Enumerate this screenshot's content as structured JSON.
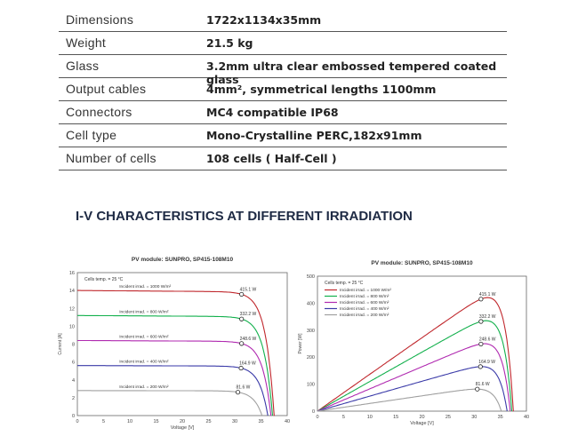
{
  "specs": [
    {
      "label": "Dimensions",
      "value": "1722x1134x35mm"
    },
    {
      "label": "Weight",
      "value": "21.5 kg"
    },
    {
      "label": "Glass",
      "value": "3.2mm ultra clear embossed tempered coated glass"
    },
    {
      "label": "Output cables",
      "value": "4mm², symmetrical lengths 1100mm"
    },
    {
      "label": "Connectors",
      "value": "MC4 compatible IP68"
    },
    {
      "label": "Cell type",
      "value": "Mono-Crystalline PERC,182x91mm"
    },
    {
      "label": "Number of cells",
      "value": "108 cells ( Half-Cell )"
    }
  ],
  "section_title": "I-V CHARACTERISTICS AT DIFFERENT IRRADIATION",
  "chart_data": [
    {
      "type": "line",
      "title": "PV module:  SUNPRO,  SP415-108M10",
      "xlabel": "Voltage [V]",
      "ylabel": "Current [A]",
      "xlim": [
        0,
        40
      ],
      "ylim": [
        0,
        16
      ],
      "xticks": [
        0,
        5,
        10,
        15,
        20,
        25,
        30,
        35,
        40
      ],
      "yticks": [
        0,
        2,
        4,
        6,
        8,
        10,
        12,
        14,
        16
      ],
      "note": "Cells temp. = 25 °C",
      "series": [
        {
          "name": "Incident irrad. = 1000 W/m²",
          "color": "#c0282d",
          "isc": 14.0,
          "voc": 37.5,
          "vmp": 31.3,
          "pmp_label": "415.1 W"
        },
        {
          "name": "Incident irrad. = 800 W/m²",
          "color": "#12b04c",
          "isc": 11.2,
          "voc": 37.2,
          "vmp": 31.3,
          "pmp_label": "332.2 W"
        },
        {
          "name": "Incident irrad. = 600 W/m²",
          "color": "#b02ab0",
          "isc": 8.4,
          "voc": 36.9,
          "vmp": 31.3,
          "pmp_label": "248.6 W"
        },
        {
          "name": "Incident irrad. = 400 W/m²",
          "color": "#3a3aa8",
          "isc": 5.6,
          "voc": 36.3,
          "vmp": 31.2,
          "pmp_label": "164.9 W"
        },
        {
          "name": "Incident irrad. = 200 W/m²",
          "color": "#a0a0a0",
          "isc": 2.8,
          "voc": 35.2,
          "vmp": 30.6,
          "pmp_label": "81.6 W"
        }
      ]
    },
    {
      "type": "line",
      "title": "PV module:  SUNPRO,  SP415-108M10",
      "xlabel": "Voltage [V]",
      "ylabel": "Power [W]",
      "xlim": [
        0,
        40
      ],
      "ylim": [
        0,
        500
      ],
      "xticks": [
        0,
        5,
        10,
        15,
        20,
        25,
        30,
        35,
        40
      ],
      "yticks": [
        0,
        100,
        200,
        300,
        400,
        500
      ],
      "note": "Cells temp. = 25 °C",
      "series": [
        {
          "name": "Incident irrad. = 1000 W/m²",
          "color": "#c0282d",
          "pmp": 415.1,
          "vmp": 31.3,
          "voc": 37.5,
          "pmp_label": "415.1 W"
        },
        {
          "name": "Incident irrad. = 800 W/m²",
          "color": "#12b04c",
          "pmp": 332.2,
          "vmp": 31.3,
          "voc": 37.2,
          "pmp_label": "332.2 W"
        },
        {
          "name": "Incident irrad. = 600 W/m²",
          "color": "#b02ab0",
          "pmp": 248.6,
          "vmp": 31.3,
          "voc": 36.9,
          "pmp_label": "248.6 W"
        },
        {
          "name": "Incident irrad. = 400 W/m²",
          "color": "#3a3aa8",
          "pmp": 164.9,
          "vmp": 31.2,
          "voc": 36.3,
          "pmp_label": "164.9 W"
        },
        {
          "name": "Incident irrad. = 200 W/m²",
          "color": "#a0a0a0",
          "pmp": 81.6,
          "vmp": 30.6,
          "voc": 35.2,
          "pmp_label": "81.6 W"
        }
      ]
    }
  ]
}
